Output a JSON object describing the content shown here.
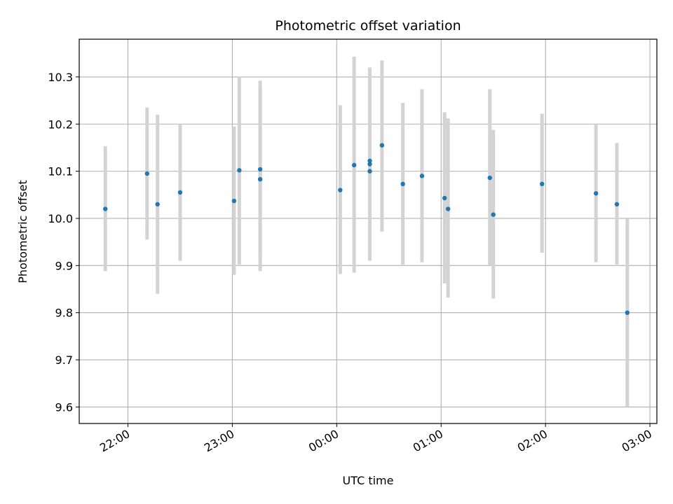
{
  "chart_data": {
    "type": "scatter",
    "title": "Photometric offset variation",
    "xlabel": "UTC time",
    "ylabel": "Photometric offset",
    "ylim": [
      9.565,
      10.38
    ],
    "xlim": [
      "21:32",
      "03:04"
    ],
    "grid": true,
    "x_ticks": [
      "22:00",
      "23:00",
      "00:00",
      "01:00",
      "02:00",
      "03:00"
    ],
    "y_ticks": [
      "9.6",
      "9.7",
      "9.8",
      "9.9",
      "10.0",
      "10.1",
      "10.2",
      "10.3"
    ],
    "point_color": "#1f77b4",
    "errorbar_color": "#d3d3d3",
    "points": [
      {
        "t": "21:47",
        "y": 10.02,
        "ylow": 9.888,
        "yhigh": 10.153
      },
      {
        "t": "22:11",
        "y": 10.095,
        "ylow": 9.955,
        "yhigh": 10.235
      },
      {
        "t": "22:17",
        "y": 10.03,
        "ylow": 9.84,
        "yhigh": 10.22
      },
      {
        "t": "22:30",
        "y": 10.055,
        "ylow": 9.91,
        "yhigh": 10.2
      },
      {
        "t": "23:01",
        "y": 10.037,
        "ylow": 9.88,
        "yhigh": 10.195
      },
      {
        "t": "23:04",
        "y": 10.102,
        "ylow": 9.902,
        "yhigh": 10.3
      },
      {
        "t": "23:16",
        "y": 10.104,
        "ylow": 9.92,
        "yhigh": 10.292
      },
      {
        "t": "23:16",
        "y": 10.083,
        "ylow": 9.888,
        "yhigh": 10.278
      },
      {
        "t": "00:02",
        "y": 10.06,
        "ylow": 9.882,
        "yhigh": 10.24
      },
      {
        "t": "00:10",
        "y": 10.113,
        "ylow": 9.885,
        "yhigh": 10.343
      },
      {
        "t": "00:19",
        "y": 10.122,
        "ylow": 9.925,
        "yhigh": 10.32
      },
      {
        "t": "00:19",
        "y": 10.115,
        "ylow": 9.93,
        "yhigh": 10.3
      },
      {
        "t": "00:19",
        "y": 10.1,
        "ylow": 9.91,
        "yhigh": 10.29
      },
      {
        "t": "00:26",
        "y": 10.155,
        "ylow": 9.972,
        "yhigh": 10.335
      },
      {
        "t": "00:38",
        "y": 10.073,
        "ylow": 9.902,
        "yhigh": 10.245
      },
      {
        "t": "00:49",
        "y": 10.09,
        "ylow": 9.907,
        "yhigh": 10.274
      },
      {
        "t": "01:02",
        "y": 10.043,
        "ylow": 9.862,
        "yhigh": 10.225
      },
      {
        "t": "01:04",
        "y": 10.02,
        "ylow": 9.832,
        "yhigh": 10.212
      },
      {
        "t": "01:28",
        "y": 10.086,
        "ylow": 9.9,
        "yhigh": 10.274
      },
      {
        "t": "01:30",
        "y": 10.008,
        "ylow": 9.83,
        "yhigh": 10.188
      },
      {
        "t": "01:58",
        "y": 10.073,
        "ylow": 9.927,
        "yhigh": 10.222
      },
      {
        "t": "02:29",
        "y": 10.053,
        "ylow": 9.907,
        "yhigh": 10.2
      },
      {
        "t": "02:41",
        "y": 10.03,
        "ylow": 9.902,
        "yhigh": 10.16
      },
      {
        "t": "02:47",
        "y": 9.8,
        "ylow": 9.6,
        "yhigh": 10.0
      }
    ]
  }
}
